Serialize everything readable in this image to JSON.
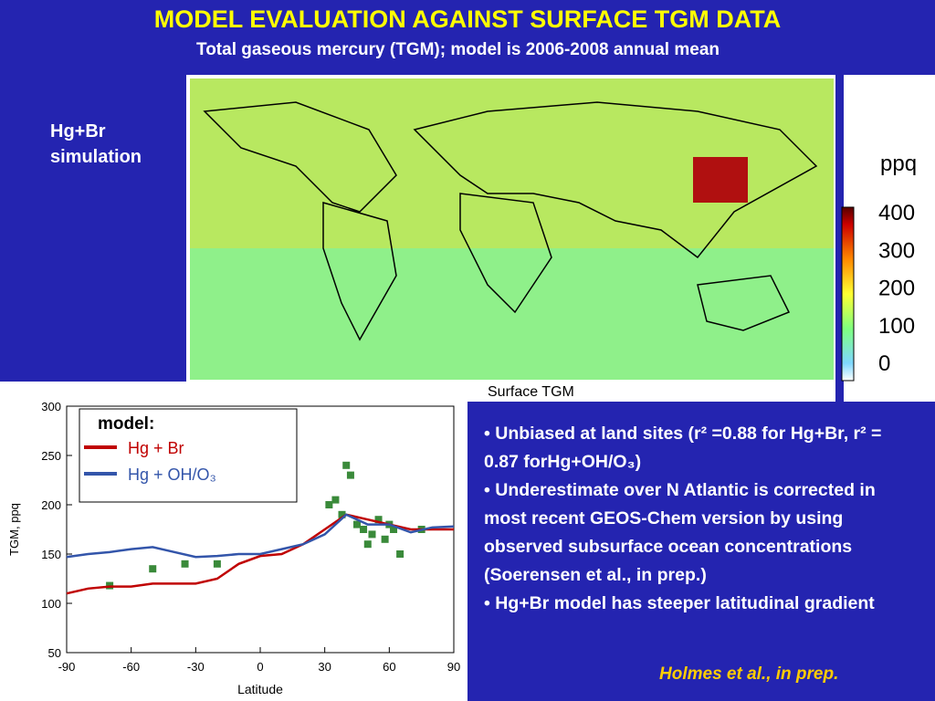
{
  "title": "MODEL EVALUATION AGAINST SURFACE TGM DATA",
  "subtitle": "Total gaseous mercury (TGM); model is 2006-2008 annual mean",
  "map": {
    "label": "Hg+Br simulation",
    "caption": "Surface TGM",
    "colorbar_unit": "ppq",
    "colorbar_ticks": [
      0,
      100,
      200,
      300,
      400
    ]
  },
  "chart_data": {
    "type": "line",
    "xlabel": "Latitude",
    "ylabel": "TGM, ppq",
    "xlim": [
      -90,
      90
    ],
    "xticks": [
      -90,
      -60,
      -30,
      0,
      30,
      60,
      90
    ],
    "ylim": [
      50,
      300
    ],
    "yticks": [
      50,
      100,
      150,
      200,
      250,
      300
    ],
    "legend_title": "model:",
    "x": [
      -90,
      -80,
      -70,
      -60,
      -50,
      -40,
      -30,
      -20,
      -10,
      0,
      10,
      20,
      30,
      40,
      50,
      60,
      70,
      80,
      90
    ],
    "series": [
      {
        "name": "Hg + Br",
        "color": "#c00000",
        "values": [
          110,
          115,
          117,
          117,
          120,
          120,
          120,
          125,
          140,
          148,
          150,
          160,
          175,
          190,
          185,
          180,
          175,
          175,
          175
        ]
      },
      {
        "name": "Hg + OH/O₃",
        "color": "#3355aa",
        "values": [
          147,
          150,
          152,
          155,
          157,
          152,
          147,
          148,
          150,
          150,
          155,
          160,
          170,
          190,
          180,
          180,
          172,
          177,
          178
        ]
      }
    ],
    "observations": {
      "color": "#3a8a3a",
      "x": [
        -70,
        -50,
        -35,
        -20,
        32,
        35,
        38,
        40,
        42,
        45,
        48,
        50,
        52,
        55,
        58,
        60,
        62,
        65,
        75
      ],
      "values": [
        118,
        135,
        140,
        140,
        200,
        205,
        190,
        240,
        230,
        180,
        175,
        160,
        170,
        185,
        165,
        180,
        175,
        150,
        175
      ]
    }
  },
  "bullets": [
    "• Unbiased at land sites (r² =0.88 for Hg+Br, r² = 0.87 forHg+OH/O₃)",
    "• Underestimate over N Atlantic is corrected in most recent GEOS-Chem version by using observed subsurface ocean concentrations (Soerensen et al., in prep.)",
    "• Hg+Br model has steeper latitudinal gradient"
  ],
  "credit": "Holmes et al., in prep."
}
